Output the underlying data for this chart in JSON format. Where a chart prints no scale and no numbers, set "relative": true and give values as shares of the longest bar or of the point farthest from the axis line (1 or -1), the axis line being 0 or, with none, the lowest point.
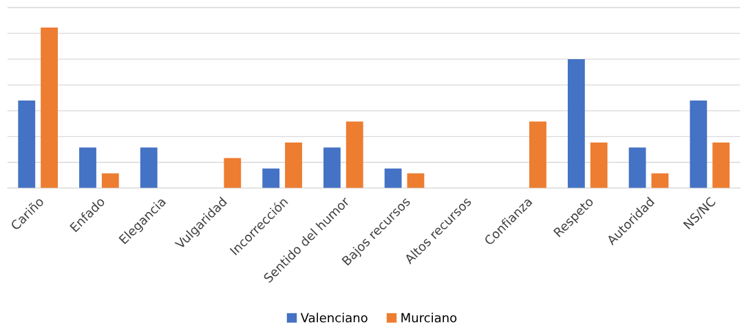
{
  "chart_data": {
    "type": "bar",
    "relative": true,
    "categories": [
      "Cariño",
      "Enfado",
      "Elegancia",
      "Vulgaridad",
      "Incorrección",
      "Sentido del humor",
      "Bajos recursos",
      "Altos recursos",
      "Confianza",
      "Respeto",
      "Autoridad",
      "NS/NC"
    ],
    "series": [
      {
        "name": "Valenciano",
        "color": "#4472c4",
        "values": [
          0.546,
          0.253,
          0.253,
          0,
          0.122,
          0.253,
          0.122,
          0,
          0,
          0.803,
          0.253,
          0.546
        ]
      },
      {
        "name": "Murciano",
        "color": "#ed7d31",
        "values": [
          1,
          0.092,
          0,
          0.188,
          0.284,
          0.415,
          0.092,
          0,
          0.415,
          0.284,
          0.092,
          0.284
        ]
      }
    ],
    "grid": "y",
    "legend": "bottom"
  }
}
